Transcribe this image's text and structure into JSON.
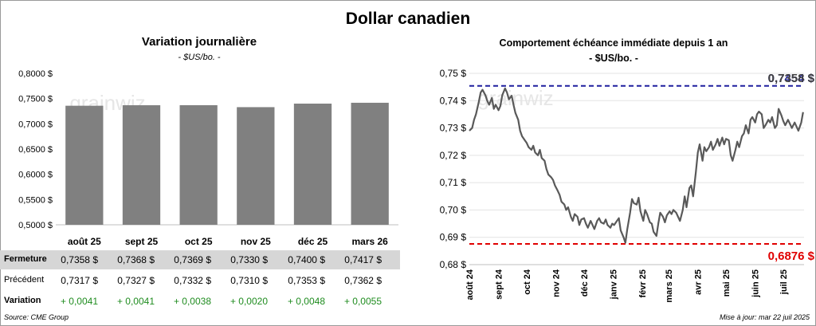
{
  "title": "Dollar canadien",
  "left_panel": {
    "title": "Variation  journalière",
    "subtitle": "- $US/bo. -",
    "table": {
      "labels": {
        "close": "Fermeture",
        "previous": "Précédent",
        "change": "Variation"
      },
      "close": [
        "0,7358  $",
        "0,7368  $",
        "0,7369  $",
        "0,7330  $",
        "0,7400  $",
        "0,7417  $"
      ],
      "previous": [
        "0,7317  $",
        "0,7327  $",
        "0,7332  $",
        "0,7310  $",
        "0,7353  $",
        "0,7362  $"
      ],
      "change": [
        "+ 0,0041",
        "+ 0,0041",
        "+ 0,0038",
        "+ 0,0020",
        "+ 0,0048",
        "+ 0,0055"
      ]
    }
  },
  "right_panel": {
    "title": "Comportement échéance immédiate depuis 1 an",
    "subtitle": "- $US/bo. -",
    "high_label": "0,7454 $",
    "current_label": "0,7358 $",
    "low_label": "0,6876 $"
  },
  "footer": {
    "source": "Source: CME Group",
    "updated": "Mise à jour: mar 22 juil 2025"
  },
  "colors": {
    "bar": "#808080",
    "line": "#595959",
    "high": "#1f1f9e",
    "low": "#e00000",
    "positive": "#1f8c1f",
    "shade": "#d6d6d6"
  },
  "watermark": "grainwiz",
  "chart_data": [
    {
      "type": "bar",
      "categories": [
        "août 25",
        "sept 25",
        "oct 25",
        "nov 25",
        "déc 25",
        "mars 26"
      ],
      "values": [
        0.7358,
        0.7368,
        0.7369,
        0.733,
        0.74,
        0.7417
      ],
      "ylim": [
        0.5,
        0.8
      ],
      "yticks": [
        0.5,
        0.55,
        0.6,
        0.65,
        0.7,
        0.75,
        0.8
      ],
      "ytick_labels": [
        "0,5000 $",
        "0,5500 $",
        "0,6000 $",
        "0,6500 $",
        "0,7000 $",
        "0,7500 $",
        "0,8000 $"
      ],
      "grid": false
    },
    {
      "type": "line",
      "ylim": [
        0.68,
        0.75
      ],
      "yticks": [
        0.68,
        0.69,
        0.7,
        0.71,
        0.72,
        0.73,
        0.74,
        0.75
      ],
      "ytick_labels": [
        "0,68 $",
        "0,69 $",
        "0,70 $",
        "0,71 $",
        "0,72 $",
        "0,73 $",
        "0,74 $",
        "0,75 $"
      ],
      "xtick_labels": [
        "août 24",
        "sept 24",
        "oct 24",
        "nov 24",
        "déc 24",
        "janv 25",
        "févr 25",
        "mars 25",
        "avr 25",
        "mai 25",
        "juin 25",
        "juil 25"
      ],
      "xtick_pos": [
        0,
        31,
        61,
        92,
        122,
        153,
        184,
        212,
        243,
        273,
        304,
        334
      ],
      "x_max": 356,
      "grid": "horizontal",
      "high": 0.7454,
      "low": 0.6876,
      "x": [
        0,
        3,
        5,
        7,
        10,
        12,
        14,
        17,
        19,
        21,
        24,
        26,
        28,
        31,
        33,
        35,
        38,
        40,
        42,
        45,
        47,
        49,
        52,
        54,
        56,
        59,
        61,
        63,
        66,
        68,
        70,
        73,
        75,
        77,
        80,
        82,
        84,
        87,
        89,
        91,
        94,
        96,
        98,
        101,
        103,
        105,
        108,
        110,
        112,
        115,
        117,
        119,
        122,
        124,
        126,
        129,
        131,
        133,
        136,
        138,
        140,
        143,
        145,
        147,
        150,
        152,
        154,
        157,
        159,
        161,
        164,
        166,
        168,
        171,
        173,
        175,
        178,
        180,
        182,
        185,
        187,
        189,
        192,
        194,
        196,
        199,
        201,
        203,
        206,
        208,
        210,
        213,
        215,
        217,
        220,
        222,
        224,
        227,
        229,
        231,
        234,
        236,
        238,
        241,
        243,
        245,
        248,
        250,
        252,
        255,
        257,
        259,
        262,
        264,
        266,
        269,
        271,
        273,
        276,
        278,
        280,
        283,
        285,
        287,
        290,
        292,
        294,
        297,
        299,
        301,
        304,
        306,
        308,
        311,
        313,
        315,
        318,
        320,
        322,
        325,
        327,
        329,
        332,
        334,
        336,
        339,
        341,
        343,
        346,
        348,
        350,
        353,
        355
      ],
      "y": [
        0.729,
        0.73,
        0.733,
        0.735,
        0.7395,
        0.743,
        0.744,
        0.742,
        0.74,
        0.7385,
        0.741,
        0.737,
        0.7385,
        0.7365,
        0.738,
        0.742,
        0.7445,
        0.743,
        0.7405,
        0.7418,
        0.7385,
        0.7355,
        0.733,
        0.729,
        0.727,
        0.7255,
        0.7245,
        0.723,
        0.722,
        0.7235,
        0.721,
        0.72,
        0.722,
        0.719,
        0.718,
        0.715,
        0.713,
        0.712,
        0.711,
        0.709,
        0.707,
        0.7055,
        0.703,
        0.702,
        0.7,
        0.701,
        0.6975,
        0.696,
        0.6985,
        0.6975,
        0.6945,
        0.6965,
        0.697,
        0.695,
        0.6935,
        0.696,
        0.6945,
        0.693,
        0.696,
        0.697,
        0.6955,
        0.695,
        0.6965,
        0.6945,
        0.6935,
        0.695,
        0.6945,
        0.696,
        0.697,
        0.6925,
        0.69,
        0.688,
        0.693,
        0.699,
        0.704,
        0.7025,
        0.702,
        0.7045,
        0.6995,
        0.696,
        0.7,
        0.6985,
        0.6955,
        0.695,
        0.692,
        0.6905,
        0.695,
        0.699,
        0.6975,
        0.6955,
        0.698,
        0.6995,
        0.6985,
        0.7,
        0.699,
        0.6975,
        0.696,
        0.7,
        0.705,
        0.701,
        0.708,
        0.709,
        0.705,
        0.714,
        0.721,
        0.724,
        0.718,
        0.723,
        0.7215,
        0.723,
        0.725,
        0.722,
        0.724,
        0.726,
        0.7235,
        0.7265,
        0.724,
        0.726,
        0.7255,
        0.72,
        0.718,
        0.722,
        0.725,
        0.723,
        0.727,
        0.728,
        0.731,
        0.728,
        0.733,
        0.734,
        0.732,
        0.735,
        0.736,
        0.735,
        0.73,
        0.731,
        0.733,
        0.732,
        0.734,
        0.73,
        0.731,
        0.737,
        0.7345,
        0.7325,
        0.731,
        0.733,
        0.7315,
        0.73,
        0.732,
        0.7305,
        0.729,
        0.732,
        0.7358
      ]
    }
  ]
}
